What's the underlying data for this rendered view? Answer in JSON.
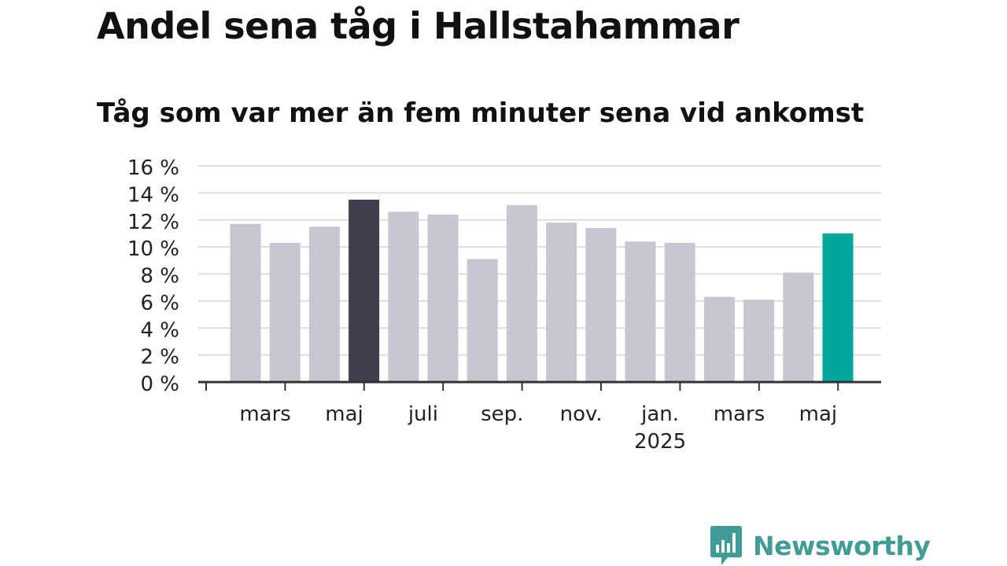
{
  "header": {
    "title": "Andel sena tåg i Hallstahammar",
    "subtitle": "Tåg som var mer än fem minuter sena vid ankomst"
  },
  "logo": {
    "text": "Newsworthy",
    "color": "#3f9c97"
  },
  "colors": {
    "bar_default": "#c8c6d0",
    "bar_highlight_dark": "#403f4d",
    "bar_highlight_accent": "#00a89c",
    "grid": "#dddddd",
    "axis": "#333333"
  },
  "chart_data": {
    "type": "bar",
    "title": "Andel sena tåg i Hallstahammar",
    "subtitle": "Tåg som var mer än fem minuter sena vid ankomst",
    "x": [
      "2024-02",
      "2024-03",
      "2024-04",
      "2024-05",
      "2024-06",
      "2024-07",
      "2024-08",
      "2024-09",
      "2024-10",
      "2024-11",
      "2024-12",
      "2025-01",
      "2025-02",
      "2025-03",
      "2025-04",
      "2025-05"
    ],
    "values": [
      11.7,
      10.3,
      11.5,
      13.5,
      12.6,
      12.4,
      9.1,
      13.1,
      11.8,
      11.4,
      10.4,
      10.3,
      6.3,
      6.1,
      8.1,
      11.0
    ],
    "highlight": {
      "2024-05": "dark",
      "2025-05": "accent"
    },
    "ylim": [
      0,
      16
    ],
    "yticks": [
      0,
      2,
      4,
      6,
      8,
      10,
      12,
      14,
      16
    ],
    "ytick_labels": [
      "0 %",
      "2 %",
      "4 %",
      "6 %",
      "8 %",
      "10 %",
      "12 %",
      "14 %",
      "16 %"
    ],
    "xtick_labels": [
      {
        "at": "2024-03",
        "label": "mars",
        "sublabel": ""
      },
      {
        "at": "2024-05",
        "label": "maj",
        "sublabel": ""
      },
      {
        "at": "2024-07",
        "label": "juli",
        "sublabel": ""
      },
      {
        "at": "2024-09",
        "label": "sep.",
        "sublabel": ""
      },
      {
        "at": "2024-11",
        "label": "nov.",
        "sublabel": ""
      },
      {
        "at": "2025-01",
        "label": "jan.",
        "sublabel": "2025"
      },
      {
        "at": "2025-03",
        "label": "mars",
        "sublabel": ""
      },
      {
        "at": "2025-05",
        "label": "maj",
        "sublabel": ""
      }
    ],
    "grid": true,
    "legend": "none"
  }
}
